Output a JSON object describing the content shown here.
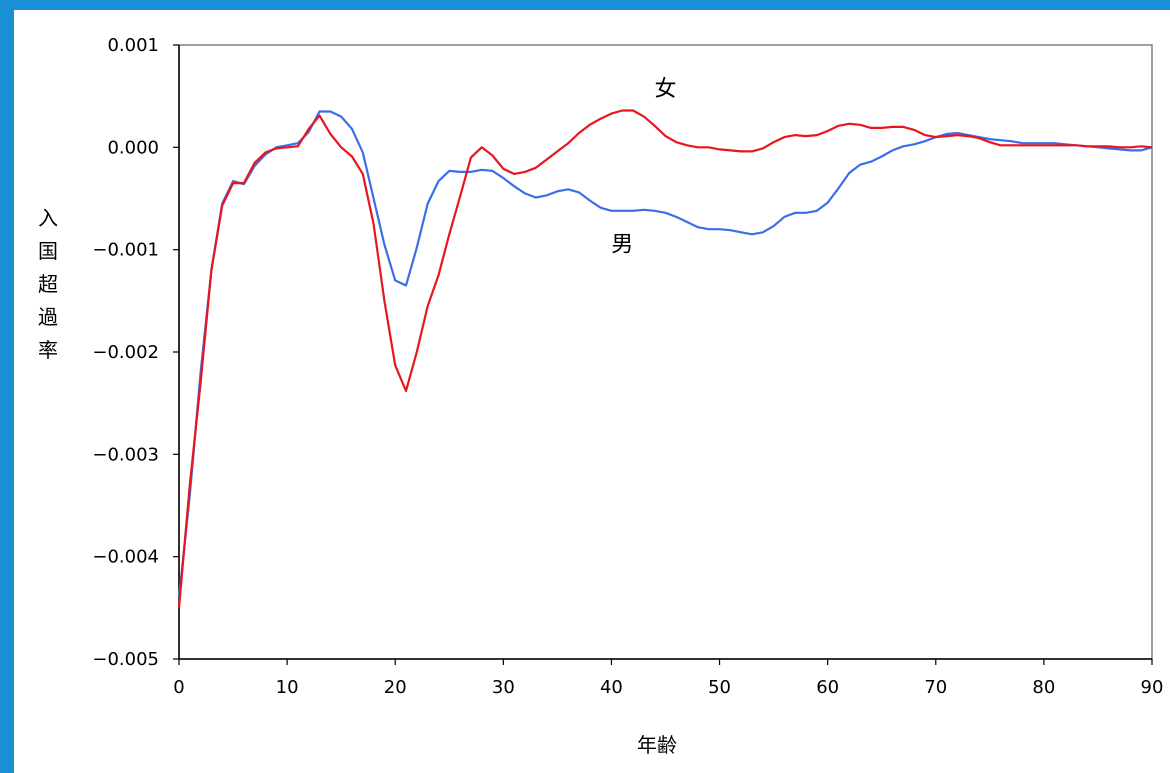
{
  "chart_data": {
    "type": "line",
    "title": "",
    "xlabel": "年齢",
    "ylabel": "入国超過率",
    "xlim": [
      0,
      90
    ],
    "ylim": [
      -0.005,
      0.001
    ],
    "x_ticks": [
      0,
      10,
      20,
      30,
      40,
      50,
      60,
      70,
      80,
      90
    ],
    "y_ticks": [
      {
        "value": 0.001,
        "label": "0.001"
      },
      {
        "value": 0.0,
        "label": "0.000"
      },
      {
        "value": -0.001,
        "label": "−0.001"
      },
      {
        "value": -0.002,
        "label": "−0.002"
      },
      {
        "value": -0.003,
        "label": "−0.003"
      },
      {
        "value": -0.004,
        "label": "−0.004"
      },
      {
        "value": -0.005,
        "label": "−0.005"
      }
    ],
    "grid": false,
    "legend": "none",
    "series": [
      {
        "name": "男",
        "color": "#3b6ee6",
        "label_at": {
          "x": 41,
          "y": -0.00102
        },
        "x": [
          0,
          1,
          2,
          3,
          4,
          5,
          6,
          7,
          8,
          9,
          10,
          11,
          12,
          13,
          14,
          15,
          16,
          17,
          18,
          19,
          20,
          21,
          22,
          23,
          24,
          25,
          26,
          27,
          28,
          29,
          30,
          31,
          32,
          33,
          34,
          35,
          36,
          37,
          38,
          39,
          40,
          41,
          42,
          43,
          44,
          45,
          46,
          47,
          48,
          49,
          50,
          51,
          52,
          53,
          54,
          55,
          56,
          57,
          58,
          59,
          60,
          61,
          62,
          63,
          64,
          65,
          66,
          67,
          68,
          69,
          70,
          71,
          72,
          73,
          74,
          75,
          76,
          77,
          78,
          79,
          80,
          81,
          82,
          83,
          84,
          85,
          86,
          87,
          88,
          89,
          90
        ],
        "values": [
          -0.0044,
          -0.0034,
          -0.0022,
          -0.0012,
          -0.00055,
          -0.00033,
          -0.00036,
          -0.00018,
          -7e-05,
          0.0,
          2e-05,
          4e-05,
          0.00015,
          0.00035,
          0.00035,
          0.0003,
          0.00018,
          -5e-05,
          -0.0005,
          -0.00095,
          -0.0013,
          -0.00135,
          -0.00098,
          -0.00055,
          -0.00033,
          -0.00023,
          -0.00024,
          -0.00024,
          -0.00022,
          -0.00023,
          -0.0003,
          -0.00038,
          -0.00045,
          -0.00049,
          -0.00047,
          -0.00043,
          -0.00041,
          -0.00044,
          -0.00052,
          -0.00059,
          -0.00062,
          -0.00062,
          -0.00062,
          -0.00061,
          -0.00062,
          -0.00064,
          -0.00068,
          -0.00073,
          -0.00078,
          -0.0008,
          -0.0008,
          -0.00081,
          -0.00083,
          -0.00085,
          -0.00083,
          -0.00077,
          -0.00068,
          -0.00064,
          -0.00064,
          -0.00062,
          -0.00054,
          -0.0004,
          -0.00025,
          -0.00017,
          -0.00014,
          -9e-05,
          -3e-05,
          1e-05,
          3e-05,
          6e-05,
          0.0001,
          0.00013,
          0.00014,
          0.00012,
          0.0001,
          8e-05,
          7e-05,
          6e-05,
          4e-05,
          4e-05,
          4e-05,
          4e-05,
          3e-05,
          2e-05,
          1e-05,
          0.0,
          -1e-05,
          -2e-05,
          -3e-05,
          -3e-05,
          0.0
        ]
      },
      {
        "name": "女",
        "color": "#e8151e",
        "label_at": {
          "x": 45,
          "y": 0.0005
        },
        "x": [
          0,
          1,
          2,
          3,
          4,
          5,
          6,
          7,
          8,
          9,
          10,
          11,
          12,
          13,
          14,
          15,
          16,
          17,
          18,
          19,
          20,
          21,
          22,
          23,
          24,
          25,
          26,
          27,
          28,
          29,
          30,
          31,
          32,
          33,
          34,
          35,
          36,
          37,
          38,
          39,
          40,
          41,
          42,
          43,
          44,
          45,
          46,
          47,
          48,
          49,
          50,
          51,
          52,
          53,
          54,
          55,
          56,
          57,
          58,
          59,
          60,
          61,
          62,
          63,
          64,
          65,
          66,
          67,
          68,
          69,
          70,
          71,
          72,
          73,
          74,
          75,
          76,
          77,
          78,
          79,
          80,
          81,
          82,
          83,
          84,
          85,
          86,
          87,
          88,
          89,
          90
        ],
        "values": [
          -0.0045,
          -0.0033,
          -0.0023,
          -0.0012,
          -0.00057,
          -0.00035,
          -0.00035,
          -0.00015,
          -5e-05,
          -1e-05,
          0.0,
          1e-05,
          0.00018,
          0.00031,
          0.00013,
          0.0,
          -9e-05,
          -0.00026,
          -0.00075,
          -0.0015,
          -0.00213,
          -0.00238,
          -0.002,
          -0.00155,
          -0.00125,
          -0.00085,
          -0.00048,
          -0.0001,
          0.0,
          -8e-05,
          -0.00021,
          -0.00026,
          -0.00024,
          -0.0002,
          -0.00012,
          -4e-05,
          4e-05,
          0.00014,
          0.00022,
          0.00028,
          0.00033,
          0.00036,
          0.00036,
          0.0003,
          0.00021,
          0.00011,
          5e-05,
          2e-05,
          0.0,
          0.0,
          -2e-05,
          -3e-05,
          -4e-05,
          -4e-05,
          -1e-05,
          5e-05,
          0.0001,
          0.00012,
          0.00011,
          0.00012,
          0.00016,
          0.00021,
          0.00023,
          0.00022,
          0.00019,
          0.00019,
          0.0002,
          0.0002,
          0.00017,
          0.00012,
          0.0001,
          0.00011,
          0.00012,
          0.00011,
          9e-05,
          5e-05,
          2e-05,
          2e-05,
          2e-05,
          2e-05,
          2e-05,
          2e-05,
          2e-05,
          2e-05,
          1e-05,
          1e-05,
          1e-05,
          0.0,
          0.0,
          1e-05,
          0.0
        ]
      }
    ]
  }
}
